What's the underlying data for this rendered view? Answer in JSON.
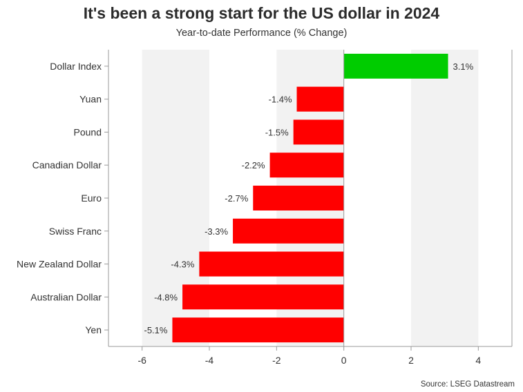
{
  "chart_data": {
    "type": "bar",
    "orientation": "horizontal",
    "title": "It's been a strong start for the US dollar in 2024",
    "subtitle": "Year-to-date Performance (% Change)",
    "source": "Source: LSEG Datastream",
    "xlabel": "",
    "ylabel": "",
    "xlim": [
      -7,
      5
    ],
    "xticks": [
      -6,
      -4,
      -2,
      0,
      2,
      4
    ],
    "xtick_labels": [
      "-6",
      "-4",
      "-2",
      "0",
      "2",
      "4"
    ],
    "grid": "alternating vertical bands",
    "categories": [
      "Dollar Index",
      "Yuan",
      "Pound",
      "Canadian Dollar",
      "Euro",
      "Swiss Franc",
      "New Zealand Dollar",
      "Australian Dollar",
      "Yen"
    ],
    "values": [
      3.1,
      -1.4,
      -1.5,
      -2.2,
      -2.7,
      -3.3,
      -4.3,
      -4.8,
      -5.1
    ],
    "value_labels": [
      "3.1%",
      "-1.4%",
      "-1.5%",
      "-2.2%",
      "-2.7%",
      "-3.3%",
      "-4.3%",
      "-4.8%",
      "-5.1%"
    ],
    "colors": {
      "positive": "#00cc00",
      "negative": "#ff0000",
      "band": "#f2f2f2",
      "axis": "#999999"
    }
  }
}
